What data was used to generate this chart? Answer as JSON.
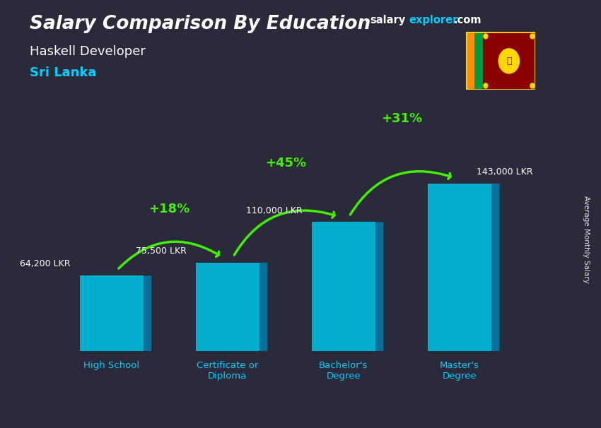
{
  "title_main": "Salary Comparison By Education",
  "title_sub": "Haskell Developer",
  "title_country": "Sri Lanka",
  "ylabel": "Average Monthly Salary",
  "categories": [
    "High School",
    "Certificate or\nDiploma",
    "Bachelor's\nDegree",
    "Master's\nDegree"
  ],
  "values": [
    64200,
    75500,
    110000,
    143000
  ],
  "value_labels": [
    "64,200 LKR",
    "75,500 LKR",
    "110,000 LKR",
    "143,000 LKR"
  ],
  "pct_labels": [
    "+18%",
    "+45%",
    "+31%"
  ],
  "bar_face_color": "#00bfdf",
  "bar_right_color": "#007aa8",
  "bar_top_color": "#55eeff",
  "title_color": "#ffffff",
  "subtitle_color": "#ffffff",
  "country_color": "#00cfff",
  "value_label_color": "#ffffff",
  "pct_color": "#44ee00",
  "arrow_color": "#44ee00",
  "x_label_color": "#00cfff",
  "watermark_salary": "#ffffff",
  "watermark_explorer": "#00cfff",
  "watermark_com": "#ffffff",
  "ylim": [
    0,
    190000
  ],
  "bar_width": 0.55,
  "bar_depth": 0.07,
  "bg_overlay_color": "#2a2a3a",
  "bg_overlay_alpha": 0.55
}
